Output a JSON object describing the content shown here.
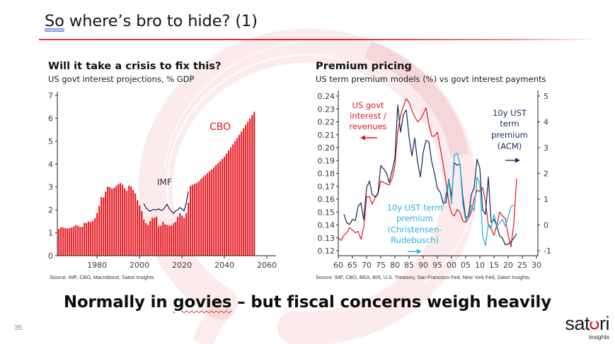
{
  "slide": {
    "title": {
      "flagged_word": "So",
      "rest": " where’s bro to hide? (1)"
    },
    "headline": {
      "before": "Normally in ",
      "flagged_word": "govies",
      "after": " – but fiscal concerns weigh heavily"
    },
    "page_number": "35",
    "logo": {
      "text_left": "sat",
      "text_right": "ri",
      "tagline": "insights"
    },
    "colors": {
      "accent": "#e31e24",
      "text": "#111111"
    }
  },
  "chart_data": [
    {
      "id": "interest-projections",
      "type": "bar",
      "title": "Will it take a crisis to fix this?",
      "subtitle": "US govt interest projections, % GDP",
      "source": "Source: IMF, CBO, Macrobond, Satori Insights.",
      "xlabel": "",
      "ylabel": "",
      "xlim": [
        1961.3,
        2064.3
      ],
      "ylim": [
        0,
        7
      ],
      "x_ticks": [
        1980,
        2000,
        2020,
        2040,
        2060
      ],
      "y_ticks": [
        0,
        1,
        2,
        3,
        4,
        5,
        6,
        7
      ],
      "grid": false,
      "legend": "none (inline labels)",
      "series": [
        {
          "name": "CBO",
          "type": "bar",
          "color": "#e8141c",
          "x_start": 1962,
          "values": [
            1.17,
            1.24,
            1.23,
            1.2,
            1.19,
            1.2,
            1.23,
            1.27,
            1.34,
            1.3,
            1.26,
            1.26,
            1.43,
            1.43,
            1.49,
            1.47,
            1.53,
            1.64,
            1.86,
            2.18,
            2.56,
            2.54,
            2.8,
            3.02,
            2.99,
            2.92,
            2.96,
            3.04,
            3.12,
            3.17,
            3.1,
            2.94,
            2.83,
            3.05,
            3.02,
            2.88,
            2.71,
            2.42,
            2.2,
            1.95,
            1.58,
            1.42,
            1.34,
            1.52,
            1.65,
            1.65,
            1.7,
            1.29,
            1.31,
            1.48,
            1.37,
            1.34,
            1.31,
            1.32,
            1.42,
            1.48,
            1.7,
            1.86,
            1.75,
            1.65,
            1.86,
            2.32,
            3.05,
            3.1,
            3.14,
            3.18,
            3.25,
            3.35,
            3.45,
            3.53,
            3.61,
            3.69,
            3.77,
            3.86,
            3.95,
            4.04,
            4.13,
            4.23,
            4.33,
            4.46,
            4.6,
            4.73,
            4.86,
            5.0,
            5.14,
            5.28,
            5.42,
            5.56,
            5.71,
            5.85,
            5.99,
            6.13,
            6.28
          ]
        },
        {
          "name": "IMF",
          "type": "line",
          "color": "#1c2b5a",
          "x_start": 2002,
          "values": [
            2.28,
            2.1,
            2.0,
            1.94,
            2.0,
            2.02,
            2.0,
            2.05,
            1.98,
            2.0,
            2.12,
            2.25,
            2.05,
            1.95,
            1.85,
            1.95,
            2.0,
            2.1,
            2.05,
            1.95,
            2.3,
            2.8
          ]
        }
      ],
      "annotations": [
        {
          "text": "IMF",
          "color": "#2e3040"
        },
        {
          "text": "CBO",
          "color": "#e8141c"
        }
      ]
    },
    {
      "id": "premium-pricing",
      "type": "line",
      "title": "Premium pricing",
      "subtitle": "US term premium models (%) vs govt interest payments",
      "source": "Source: IMF, CBO, BEA, BIS, U.S. Treasury, San Francisco Fed, New York Fed, Satori Insights.",
      "xlim": [
        1960,
        2030.5
      ],
      "x_ticks": [
        1960,
        1965,
        1970,
        1975,
        1980,
        1985,
        1990,
        1995,
        2000,
        2005,
        2010,
        2015,
        2020,
        2025,
        2030
      ],
      "x_tick_labels": [
        "60",
        "65",
        "70",
        "75",
        "80",
        "85",
        "90",
        "95",
        "00",
        "05",
        "10",
        "15",
        "20",
        "25",
        "30"
      ],
      "y_left": {
        "lim": [
          0.12,
          0.24
        ],
        "ticks": [
          0.24,
          0.23,
          0.22,
          0.21,
          0.2,
          0.19,
          0.18,
          0.17,
          0.16,
          0.15,
          0.14,
          0.13,
          0.12
        ],
        "tick_labels": [
          "0.24",
          "0.23",
          "0.22",
          "0.21",
          "0.20",
          "0.19",
          "0.18",
          "0.17",
          "0.16",
          "0.15",
          "0.14",
          "0.13",
          "0.12"
        ]
      },
      "y_right": {
        "lim": [
          -1,
          5
        ],
        "ticks": [
          5,
          4,
          3,
          2,
          1,
          0,
          -1
        ],
        "tick_labels": [
          "5",
          "4",
          "3",
          "2",
          "1",
          "0",
          "-1"
        ]
      },
      "grid": false,
      "legend": "none (inline labels)",
      "series": [
        {
          "name": "US govt interest / revenues",
          "axis": "left",
          "color": "#e31b23",
          "x_start": 1960,
          "values": [
            0.13,
            0.128,
            0.132,
            0.134,
            0.138,
            0.136,
            0.134,
            0.135,
            0.129,
            0.138,
            0.162,
            0.162,
            0.156,
            0.161,
            0.164,
            0.174,
            0.173,
            0.172,
            0.171,
            0.176,
            0.186,
            0.212,
            0.225,
            0.232,
            0.238,
            0.235,
            0.229,
            0.224,
            0.22,
            0.222,
            0.226,
            0.231,
            0.218,
            0.209,
            0.209,
            0.212,
            0.2,
            0.188,
            0.174,
            0.158,
            0.149,
            0.147,
            0.152,
            0.15,
            0.143,
            0.142,
            0.145,
            0.15,
            0.16,
            0.167,
            0.166,
            0.169,
            0.158,
            0.14,
            0.137,
            0.132,
            0.14,
            0.15,
            0.147,
            0.145,
            0.132,
            0.123,
            0.141,
            0.176
          ]
        },
        {
          "name": "10y UST term premium (ACM)",
          "axis": "right",
          "color": "#1b2a5a",
          "x_start": 1962,
          "values": [
            0.42,
            0.08,
            0.02,
            0.22,
            0.17,
            0.72,
            0.86,
            0.2,
            1.45,
            1.7,
            1.18,
            1.09,
            1.22,
            2.3,
            2.18,
            2.02,
            1.65,
            2.1,
            2.6,
            4.65,
            3.6,
            4.28,
            4.47,
            3.42,
            2.68,
            3.37,
            2.46,
            1.86,
            2.82,
            3.28,
            3.23,
            2.46,
            2.0,
            1.42,
            1.27,
            0.86,
            0.86,
            1.78,
            1.1,
            2.41,
            2.32,
            2.36,
            1.09,
            0.27,
            0.36,
            1.18,
            1.45,
            2.55,
            2.2,
            0.58,
            0.41,
            1.86,
            0.1,
            0.22,
            -0.05,
            -0.42,
            -0.51,
            -0.77,
            -0.74,
            -0.65,
            -0.51,
            -0.33
          ]
        },
        {
          "name": "10y UST term premium (Christensen-Rudebusch)",
          "axis": "right",
          "color": "#22b2d9",
          "x_start": 1997,
          "values": [
            0.72,
            1.18,
            1.73,
            0.82,
            2.73,
            2.78,
            2.36,
            0.81,
            0.17,
            0.27,
            0.77,
            0.54,
            1.86,
            1.6,
            -0.42,
            -0.79,
            0.04,
            -0.1,
            0.4,
            -0.05,
            0.08,
            0.22,
            -0.05,
            0.31,
            0.72,
            0.77
          ]
        }
      ],
      "annotations": [
        {
          "lines": [
            "US govt",
            "interest /",
            "revenues"
          ],
          "arrow": "left",
          "color": "#e31b23"
        },
        {
          "lines": [
            "10y UST",
            "term",
            "premium",
            "(ACM)"
          ],
          "arrow": "right",
          "color": "#1b2a5a"
        },
        {
          "lines": [
            "10y UST term",
            "premium",
            "(Christensen-",
            "Rudebusch)"
          ],
          "arrow": "right",
          "color": "#22b2d9"
        }
      ]
    }
  ]
}
